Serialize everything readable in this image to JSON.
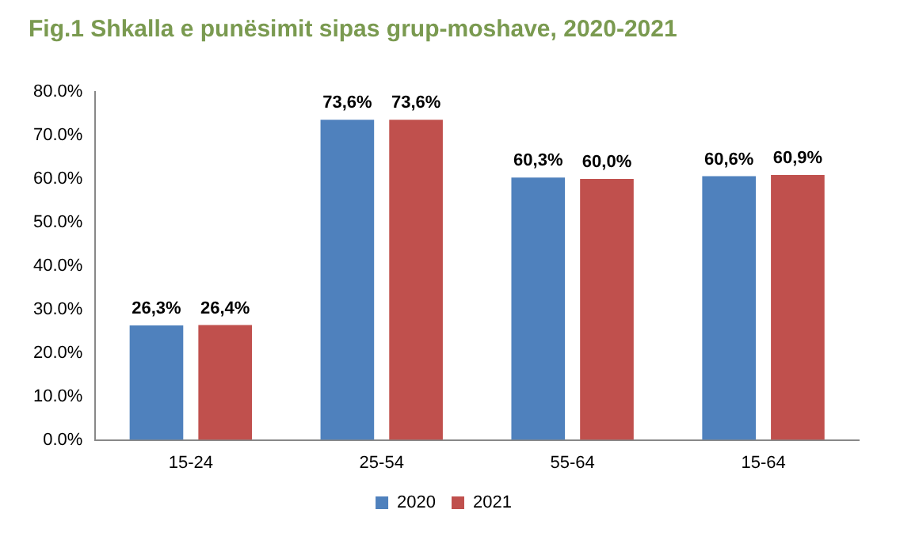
{
  "chart_data": {
    "type": "bar",
    "title": "Fig.1 Shkalla e punësimit sipas grup-moshave, 2020-2021",
    "categories": [
      "15-24",
      "25-54",
      "55-64",
      "15-64"
    ],
    "series": [
      {
        "name": "2020",
        "color": "#4f81bd",
        "values": [
          26.3,
          73.6,
          60.3,
          60.6
        ],
        "value_labels": [
          "26,3%",
          "73,6%",
          "60,3%",
          "60,6%"
        ]
      },
      {
        "name": "2021",
        "color": "#c0504d",
        "values": [
          26.4,
          73.6,
          60.0,
          60.9
        ],
        "value_labels": [
          "26,4%",
          "73,6%",
          "60,0%",
          "60,9%"
        ]
      }
    ],
    "ylim": [
      0,
      80
    ],
    "yticks": [
      {
        "value": 0,
        "label": "0.0%"
      },
      {
        "value": 10,
        "label": "10.0%"
      },
      {
        "value": 20,
        "label": "20.0%"
      },
      {
        "value": 30,
        "label": "30.0%"
      },
      {
        "value": 40,
        "label": "40.0%"
      },
      {
        "value": 50,
        "label": "50.0%"
      },
      {
        "value": 60,
        "label": "60.0%"
      },
      {
        "value": 70,
        "label": "70.0%"
      },
      {
        "value": 80,
        "label": "80.0%"
      }
    ],
    "grid": false,
    "legend": "bottom"
  }
}
